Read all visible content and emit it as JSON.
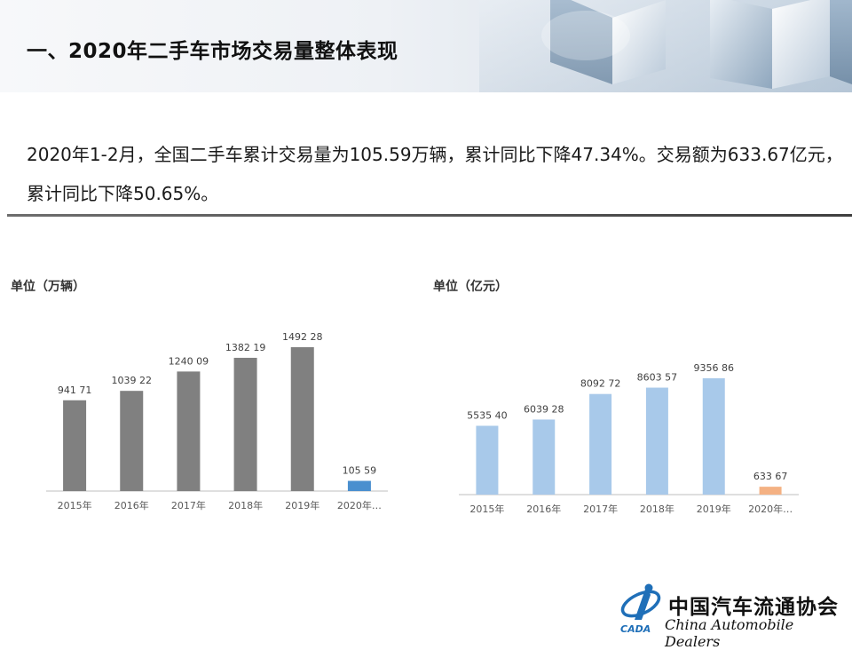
{
  "header": {
    "title": "一、2020年二手车市场交易量整体表现"
  },
  "intro": {
    "text": "2020年1-2月，全国二手车累计交易量为105.59万辆，累计同比下降47.34%。交易额为633.67亿元，累计同比下降50.65%。"
  },
  "logo": {
    "name_cn": "中国汽车流通协会",
    "name_en": "China Automobile Dealers",
    "mark_text": "CADA"
  },
  "chart_data": [
    {
      "type": "bar",
      "unit_label": "单位（万辆）",
      "categories": [
        "2015年",
        "2016年",
        "2017年",
        "2018年",
        "2019年",
        "2020年…"
      ],
      "values": [
        941.71,
        1039.22,
        1240.09,
        1382.19,
        1492.28,
        105.59
      ],
      "data_labels": [
        "941 71",
        "1039 22",
        "1240 09",
        "1382 19",
        "1492 28",
        "105 59"
      ],
      "colors": [
        "#808080",
        "#808080",
        "#808080",
        "#808080",
        "#808080",
        "#4a8fcf"
      ],
      "grid": false,
      "legend": "none"
    },
    {
      "type": "bar",
      "unit_label": "单位（亿元）",
      "categories": [
        "2015年",
        "2016年",
        "2017年",
        "2018年",
        "2019年",
        "2020年…"
      ],
      "values": [
        5535.4,
        6039.28,
        8092.72,
        8603.57,
        9356.86,
        633.67
      ],
      "data_labels": [
        "5535 40",
        "6039 28",
        "8092 72",
        "8603 57",
        "9356 86",
        "633 67"
      ],
      "colors": [
        "#a8c9ea",
        "#a8c9ea",
        "#a8c9ea",
        "#a8c9ea",
        "#a8c9ea",
        "#f4b183"
      ],
      "grid": false,
      "legend": "none"
    }
  ]
}
